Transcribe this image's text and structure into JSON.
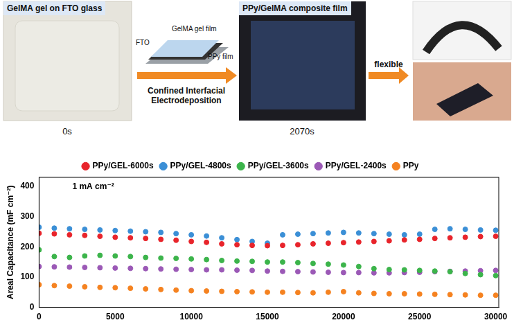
{
  "diagram": {
    "panels": [
      {
        "title": "GelMA gel on FTO glass",
        "time": "0s"
      },
      {
        "title": "PPy/GelMA composite film",
        "time": "2070s"
      }
    ],
    "inset_labels": [
      "GelMA gel film",
      "PPy film",
      "FTO"
    ],
    "arrows": [
      {
        "label": "Confined Interfacial Electrodeposition"
      },
      {
        "label": "flexible"
      }
    ]
  },
  "chart_data": {
    "type": "scatter",
    "y_label": "Areal Capacitance (mF cm⁻²)",
    "annotations": [
      "1 mA cm⁻²"
    ],
    "x": [
      0,
      1000,
      2000,
      3000,
      4000,
      5000,
      6000,
      7000,
      8000,
      9000,
      10000,
      11000,
      12000,
      13000,
      14000,
      15000,
      16000,
      17000,
      18000,
      19000,
      20000,
      21000,
      22000,
      23000,
      24000,
      25000,
      26000,
      27000,
      28000,
      29000,
      30000
    ],
    "series": [
      {
        "name": "PPy/GEL-6000s",
        "color": "#e8242b",
        "marker": "circle",
        "values": [
          245,
          243,
          240,
          238,
          235,
          232,
          230,
          228,
          225,
          222,
          218,
          215,
          210,
          207,
          205,
          204,
          205,
          207,
          210,
          212,
          214,
          216,
          218,
          220,
          223,
          225,
          228,
          230,
          232,
          234,
          235
        ]
      },
      {
        "name": "PPy/GEL-4800s",
        "color": "#3b8fd6",
        "marker": "circle",
        "values": [
          265,
          262,
          260,
          258,
          256,
          254,
          252,
          250,
          248,
          244,
          240,
          236,
          230,
          224,
          218,
          212,
          240,
          242,
          244,
          246,
          248,
          246,
          244,
          242,
          240,
          242,
          258,
          260,
          258,
          256,
          255
        ]
      },
      {
        "name": "PPy/GEL-3600s",
        "color": "#3cb44b",
        "marker": "circle",
        "values": [
          190,
          168,
          165,
          170,
          172,
          170,
          168,
          165,
          163,
          162,
          160,
          158,
          155,
          153,
          152,
          150,
          150,
          148,
          145,
          143,
          140,
          135,
          128,
          125,
          124,
          122,
          120,
          118,
          112,
          108,
          105
        ]
      },
      {
        "name": "PPy/GEL-2400s",
        "color": "#9b59b6",
        "marker": "circle",
        "values": [
          135,
          134,
          133,
          132,
          131,
          130,
          129,
          128,
          127,
          126,
          125,
          124,
          124,
          123,
          122,
          120,
          119,
          118,
          117,
          116,
          115,
          115,
          114,
          114,
          115,
          116,
          118,
          119,
          120,
          121,
          122
        ]
      },
      {
        "name": "PPy",
        "color": "#f58220",
        "marker": "circle",
        "values": [
          75,
          72,
          70,
          68,
          66,
          65,
          63,
          61,
          59,
          57,
          55,
          54,
          53,
          52,
          51,
          50,
          50,
          49,
          48,
          50,
          52,
          48,
          46,
          45,
          45,
          44,
          43,
          42,
          41,
          40,
          40
        ]
      }
    ],
    "xlim": [
      0,
      30200
    ],
    "xticks": [
      0,
      5000,
      10000,
      15000,
      20000,
      25000,
      30000
    ],
    "ylim": [
      0,
      430
    ],
    "yticks": [
      0,
      100,
      200,
      300,
      400
    ],
    "grid": false,
    "legend": "top"
  }
}
